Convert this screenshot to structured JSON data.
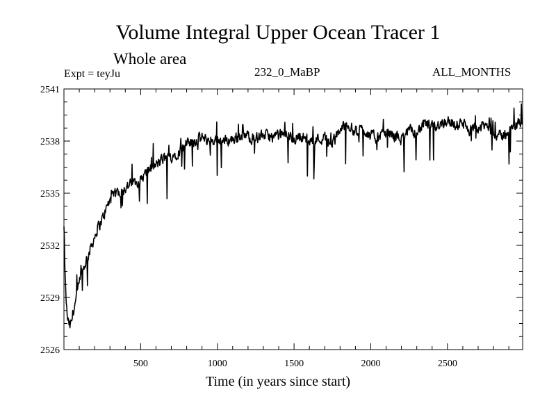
{
  "chart_data": {
    "type": "line",
    "title": "Volume Integral Upper Ocean Tracer 1",
    "subtitle": "Whole area",
    "annotations": {
      "experiment": "Expt = teyJu",
      "run": "232_0_MaBP",
      "months": "ALL_MONTHS"
    },
    "xlabel": "Time (in years since start)",
    "ylabel": "",
    "xlim": [
      0,
      2990
    ],
    "ylim": [
      2526,
      2541
    ],
    "xticks": [
      500,
      1000,
      1500,
      2000,
      2500
    ],
    "yticks": [
      2526,
      2529,
      2532,
      2535,
      2538,
      2541
    ],
    "grid": false,
    "series": [
      {
        "name": "Tracer 1",
        "x": [
          0,
          10,
          20,
          30,
          40,
          50,
          60,
          80,
          100,
          120,
          140,
          160,
          180,
          200,
          220,
          250,
          280,
          300,
          330,
          360,
          400,
          450,
          500,
          550,
          600,
          650,
          700,
          750,
          800,
          850,
          900,
          950,
          1000,
          1050,
          1100,
          1150,
          1200,
          1250,
          1300,
          1350,
          1400,
          1450,
          1500,
          1550,
          1600,
          1650,
          1700,
          1750,
          1800,
          1850,
          1900,
          1950,
          2000,
          2050,
          2100,
          2150,
          2200,
          2250,
          2300,
          2350,
          2400,
          2450,
          2500,
          2550,
          2600,
          2650,
          2700,
          2750,
          2800,
          2850,
          2900,
          2950,
          2990
        ],
        "values": [
          2533.0,
          2529.5,
          2528.0,
          2527.5,
          2527.3,
          2527.6,
          2528.2,
          2528.9,
          2529.8,
          2530.4,
          2531.0,
          2531.5,
          2532.0,
          2532.5,
          2533.0,
          2533.5,
          2534.2,
          2534.6,
          2534.9,
          2535.1,
          2535.3,
          2535.6,
          2535.8,
          2536.3,
          2536.6,
          2537.0,
          2537.1,
          2537.4,
          2537.8,
          2538.0,
          2538.2,
          2538.0,
          2538.1,
          2538.0,
          2538.1,
          2538.3,
          2538.3,
          2538.1,
          2538.4,
          2538.2,
          2538.3,
          2538.4,
          2538.1,
          2538.3,
          2538.0,
          2538.1,
          2538.2,
          2537.8,
          2538.7,
          2539.0,
          2538.5,
          2538.7,
          2538.3,
          2538.2,
          2538.5,
          2538.3,
          2538.1,
          2538.6,
          2538.5,
          2539.0,
          2538.8,
          2539.0,
          2539.2,
          2538.9,
          2539.0,
          2538.6,
          2538.7,
          2538.9,
          2538.5,
          2538.2,
          2538.6,
          2538.9,
          2539.3
        ],
        "noise_amplitude": 0.45
      }
    ]
  }
}
